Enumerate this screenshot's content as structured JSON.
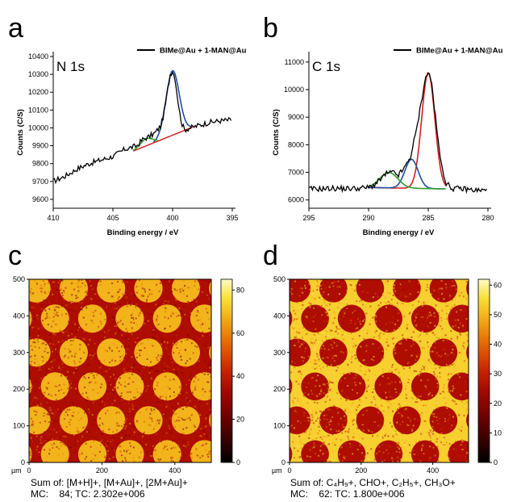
{
  "panels": {
    "a": {
      "letter": "a"
    },
    "b": {
      "letter": "b"
    },
    "c": {
      "letter": "c"
    },
    "d": {
      "letter": "d"
    }
  },
  "chart_data": [
    {
      "id": "a",
      "type": "line",
      "peak_label": "N 1s",
      "legend": "BIMe@Au + 1-MAN@Au",
      "xlabel": "Binding energy / eV",
      "ylabel": "Counts (C/S)",
      "xlim": [
        410,
        395
      ],
      "ylim": [
        9550,
        10400
      ],
      "xticks": [
        410,
        405,
        400,
        395
      ],
      "yticks": [
        9600,
        9700,
        9800,
        9900,
        10000,
        10100,
        10200,
        10300,
        10400
      ],
      "colors": {
        "data": "#000000",
        "fit1": "#1f4ea8",
        "fit2": "#2aa02a",
        "background": "#d42020"
      },
      "series": [
        {
          "name": "BIMe@Au + 1-MAN@Au",
          "color": "#000000",
          "x": [
            410,
            409,
            408,
            407,
            406,
            405,
            404,
            403,
            402.5,
            402,
            401.5,
            401,
            400.8,
            400.6,
            400.4,
            400.2,
            400,
            399.8,
            399.6,
            399.4,
            399.2,
            399,
            398.5,
            398,
            397,
            396,
            395
          ],
          "y": [
            9700,
            9730,
            9770,
            9800,
            9820,
            9840,
            9880,
            9900,
            9935,
            9950,
            9970,
            10010,
            10060,
            10130,
            10220,
            10300,
            10320,
            10280,
            10180,
            10080,
            10020,
            9990,
            10000,
            10010,
            10030,
            10040,
            10045
          ]
        }
      ],
      "fits": [
        {
          "color": "#1f4ea8",
          "center": 400.0,
          "height": 10320,
          "width": 0.55,
          "range": [
            401.6,
            398.4
          ]
        },
        {
          "color": "#2aa02a",
          "center": 402.2,
          "height": 9940,
          "width": 0.5,
          "range": [
            403.3,
            401.2
          ]
        }
      ],
      "baseline": {
        "color": "#d42020",
        "x": [
          403.3,
          398.3
        ],
        "y": [
          9870,
          10005
        ]
      }
    },
    {
      "id": "b",
      "type": "line",
      "peak_label": "C 1s",
      "legend": "BIMe@Au + 1-MAN@Au",
      "xlabel": "Binding energy / eV",
      "ylabel": "Counts (C/S)",
      "xlim": [
        295,
        280
      ],
      "ylim": [
        5700,
        11200
      ],
      "xticks": [
        295,
        290,
        285,
        280
      ],
      "yticks": [
        6000,
        7000,
        8000,
        9000,
        10000,
        11000
      ],
      "colors": {
        "data": "#000000",
        "fit1": "#d42020",
        "fit2": "#1f4ea8",
        "fit3": "#2aa02a"
      },
      "series": [
        {
          "name": "BIMe@Au + 1-MAN@Au",
          "color": "#000000",
          "x": [
            295,
            294,
            293,
            292,
            291,
            290,
            289.5,
            289,
            288.5,
            288,
            287.5,
            287,
            286.5,
            286,
            285.6,
            285.3,
            285,
            284.7,
            284.4,
            284,
            283.5,
            283,
            282,
            281,
            280
          ],
          "y": [
            6400,
            6400,
            6420,
            6410,
            6420,
            6450,
            6550,
            6750,
            6950,
            7000,
            6900,
            7150,
            7550,
            8500,
            9500,
            10300,
            10650,
            10200,
            9000,
            7500,
            6600,
            6420,
            6400,
            6350,
            6350
          ]
        }
      ],
      "fits": [
        {
          "color": "#d42020",
          "center": 285.0,
          "height": 4200,
          "width": 0.55
        },
        {
          "color": "#1f4ea8",
          "center": 286.4,
          "height": 1050,
          "width": 0.55
        },
        {
          "color": "#2aa02a",
          "center": 288.3,
          "height": 560,
          "width": 0.75
        }
      ],
      "baseline": {
        "x": [
          290,
          283.5
        ],
        "y": [
          6450,
          6400
        ]
      }
    },
    {
      "id": "c",
      "type": "heatmap",
      "axis_unit": "µm",
      "xlim": [
        0,
        500
      ],
      "ylim": [
        0,
        500
      ],
      "xticks": [
        0,
        200,
        400
      ],
      "yticks": [
        0,
        100,
        200,
        300,
        400,
        500
      ],
      "colorbar_ticks": [
        0,
        20,
        40,
        60,
        80
      ],
      "colorbar_max": 85,
      "pattern": "bright discs on dark background",
      "caption_line1": "Sum of: [M+H]+, [M+Au]+, [2M+Au]+",
      "caption_line2": "MC:    84; TC: 2.302e+006"
    },
    {
      "id": "d",
      "type": "heatmap",
      "axis_unit": "µm",
      "xlim": [
        0,
        500
      ],
      "ylim": [
        0,
        500
      ],
      "xticks": [
        0,
        200,
        400
      ],
      "yticks": [
        0,
        100,
        200,
        300,
        400,
        500
      ],
      "colorbar_ticks": [
        0,
        10,
        20,
        30,
        40,
        50,
        60
      ],
      "colorbar_max": 62,
      "pattern": "dark discs on bright background",
      "caption_line1": "Sum of: C₄H₉+, CHO+, C₂H₅+, CH₃O+",
      "caption_line2": "MC:    62: TC: 1.800e+006"
    }
  ]
}
